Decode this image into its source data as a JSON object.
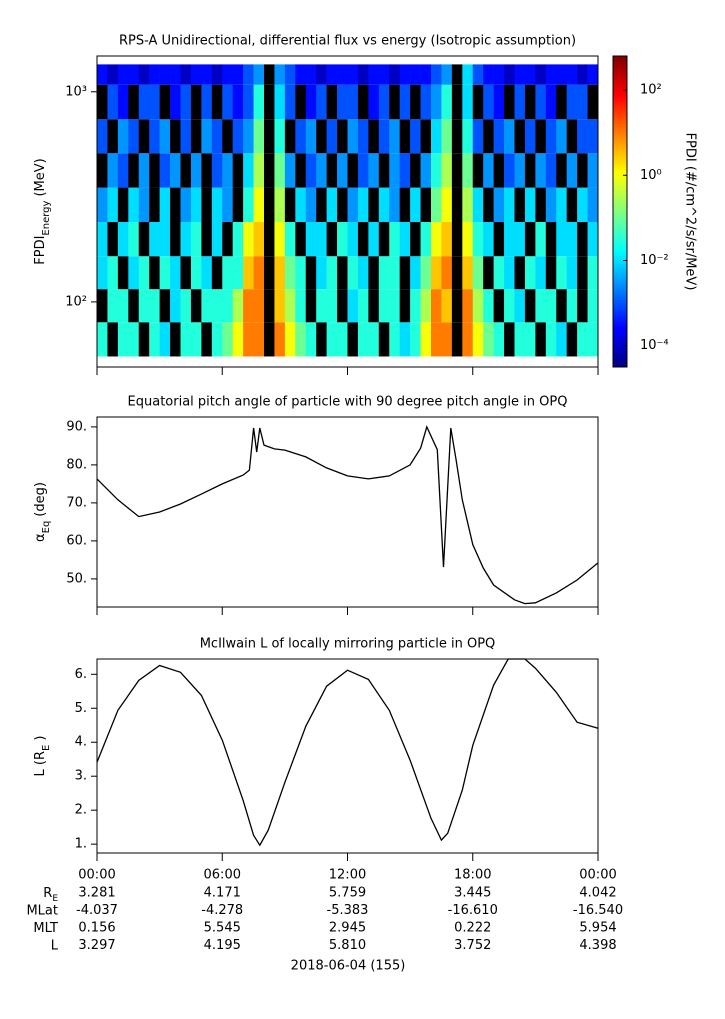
{
  "chart_data": [
    {
      "type": "heatmap",
      "title": "RPS-A Unidirectional, differential flux vs energy (Isotropic assumption)",
      "y_label": "FPDI",
      "y_label_sub": "Energy",
      "y_label_unit": "(MeV)",
      "xlim": [
        0,
        24
      ],
      "x_bins": [
        0,
        0.5,
        1,
        1.5,
        2,
        2.5,
        3,
        3.5,
        4,
        4.5,
        5,
        5.5,
        6,
        6.5,
        7,
        7.5,
        8,
        8.5,
        9,
        9.5,
        10,
        10.5,
        11,
        11.5,
        12,
        12.5,
        13,
        13.5,
        14,
        14.5,
        15,
        15.5,
        16,
        16.5,
        17,
        17.5,
        18,
        18.5,
        19,
        19.5,
        20,
        20.5,
        21,
        21.5,
        22,
        22.5,
        23,
        23.5,
        24
      ],
      "y_bins": [
        55,
        80,
        115,
        165,
        240,
        350,
        510,
        740,
        1080,
        1350
      ],
      "ylim": [
        49,
        1480
      ],
      "log_y": true,
      "yticks": [
        {
          "value": 100,
          "label": "10²"
        },
        {
          "value": 1000,
          "label": "10³"
        }
      ],
      "values": [
        [
          0.03,
          null,
          0.03,
          0.03,
          null,
          0.03,
          0.01,
          null,
          0.03,
          0.03,
          null,
          0.03,
          0.1,
          1,
          10,
          10,
          null,
          10,
          1,
          0.1,
          0.03,
          null,
          0.03,
          0.03,
          null,
          0.03,
          0.03,
          null,
          0.03,
          0.01,
          0.03,
          1,
          10,
          10,
          null,
          10,
          1,
          0.1,
          0.03,
          null,
          0.03,
          0.03,
          null,
          0.03,
          0.01,
          null,
          0.03,
          0.03
        ],
        [
          null,
          0.03,
          0.03,
          null,
          0.03,
          0.03,
          null,
          0.01,
          0.03,
          null,
          0.03,
          0.03,
          0.03,
          0.3,
          10,
          10,
          null,
          3,
          0.3,
          0.03,
          null,
          0.03,
          0.03,
          null,
          0.01,
          0.03,
          null,
          0.03,
          0.03,
          null,
          0.03,
          0.3,
          10,
          3,
          null,
          10,
          0.3,
          0.03,
          null,
          0.03,
          0.01,
          null,
          0.03,
          0.03,
          null,
          0.03,
          null,
          0.03
        ],
        [
          0.01,
          0.03,
          null,
          0.01,
          0.03,
          null,
          0.03,
          0.01,
          null,
          0.03,
          0.01,
          null,
          0.03,
          0.03,
          3,
          10,
          null,
          3,
          0.1,
          0.03,
          null,
          0.01,
          0.03,
          null,
          0.03,
          0.01,
          null,
          0.03,
          0.03,
          null,
          0.01,
          0.1,
          3,
          10,
          null,
          3,
          0.1,
          null,
          0.03,
          0.01,
          null,
          0.03,
          0.01,
          null,
          0.03,
          0.01,
          null,
          0.03
        ],
        [
          0.01,
          null,
          0.01,
          0.03,
          null,
          0.01,
          0.01,
          null,
          0.01,
          0.03,
          null,
          0.01,
          null,
          0.03,
          1,
          3,
          null,
          1,
          0.03,
          null,
          0.01,
          0.01,
          null,
          0.03,
          0.01,
          null,
          0.01,
          null,
          0.03,
          0.01,
          null,
          0.03,
          1,
          3,
          null,
          1,
          0.03,
          0.01,
          null,
          0.01,
          0.01,
          null,
          0.03,
          null,
          0.01,
          0.01,
          null,
          0.01
        ],
        [
          0.003,
          0.01,
          null,
          0.01,
          0.003,
          null,
          0.01,
          null,
          0.003,
          0.01,
          null,
          0.01,
          0.003,
          null,
          0.03,
          1,
          null,
          0.3,
          null,
          0.01,
          0.003,
          null,
          0.01,
          null,
          0.003,
          0.01,
          null,
          0.01,
          0.003,
          null,
          0.01,
          null,
          0.1,
          1,
          null,
          0.3,
          0.01,
          null,
          0.003,
          0.01,
          null,
          0.01,
          null,
          0.003,
          0.01,
          null,
          0.01,
          0.003
        ],
        [
          null,
          0.003,
          0.001,
          null,
          0.003,
          null,
          0.001,
          0.003,
          null,
          0.003,
          null,
          0.001,
          0.003,
          null,
          0.01,
          0.3,
          null,
          0.1,
          0.003,
          null,
          0.001,
          0.003,
          null,
          0.003,
          null,
          0.001,
          0.003,
          null,
          0.003,
          0.001,
          null,
          0.003,
          0.03,
          0.3,
          null,
          0.1,
          null,
          0.003,
          null,
          0.001,
          0.003,
          null,
          0.003,
          0.001,
          null,
          0.003,
          null,
          0.003
        ],
        [
          0.001,
          null,
          0.003,
          0.001,
          null,
          0.001,
          0.003,
          null,
          0.001,
          null,
          0.003,
          0.001,
          null,
          0.001,
          0.003,
          0.1,
          null,
          0.03,
          null,
          0.001,
          0.003,
          null,
          0.001,
          null,
          0.003,
          0.001,
          null,
          0.001,
          0.003,
          null,
          0.001,
          null,
          0.01,
          0.1,
          null,
          0.03,
          0.001,
          null,
          0.001,
          0.003,
          null,
          0.001,
          null,
          0.001,
          0.003,
          null,
          0.001,
          0.001
        ],
        [
          null,
          0.001,
          0.0003,
          null,
          0.001,
          0.001,
          null,
          0.0003,
          0.001,
          null,
          0.001,
          null,
          0.001,
          0.0003,
          0.001,
          0.03,
          null,
          0.01,
          0.001,
          null,
          0.0003,
          0.001,
          null,
          0.001,
          0.001,
          null,
          0.0003,
          0.001,
          null,
          0.001,
          null,
          0.001,
          0.003,
          0.03,
          null,
          0.01,
          null,
          0.001,
          0.0003,
          null,
          0.001,
          null,
          0.001,
          0.0003,
          null,
          0.001,
          0.001,
          null
        ],
        [
          0.0003,
          0.0001,
          0.0003,
          0.0003,
          0.0001,
          0.0003,
          0.0003,
          0.0003,
          0.0001,
          0.0003,
          0.0003,
          0.0001,
          0.0003,
          0.0003,
          0.001,
          0.003,
          null,
          0.003,
          0.001,
          0.0003,
          0.0003,
          0.0001,
          0.0003,
          0.0003,
          0.0003,
          0.0001,
          0.0003,
          0.0003,
          0.0001,
          0.0003,
          0.0003,
          0.0003,
          0.001,
          0.003,
          null,
          0.01,
          0.001,
          0.0003,
          0.0003,
          0.0001,
          0.0003,
          0.0003,
          0.0001,
          0.0003,
          0.0003,
          0.0003,
          0.0001,
          0.0003
        ]
      ],
      "colorbar": {
        "label": "FPDI (#/cm^2/s/sr/MeV)",
        "zlim": [
          3.16e-05,
          631
        ],
        "colormap": "jet",
        "missing_color": "#000000",
        "ticks": [
          {
            "value": 0.0001,
            "label": "10⁻⁴"
          },
          {
            "value": 0.01,
            "label": "10⁻²"
          },
          {
            "value": 1,
            "label": "10⁰"
          },
          {
            "value": 100,
            "label": "10²"
          }
        ]
      }
    },
    {
      "type": "line",
      "title": "Equatorial pitch angle of particle with 90 degree pitch angle in OPQ",
      "y_label": "α",
      "y_label_sub": "Eq",
      "y_label_unit": "(deg)",
      "xlim": [
        0,
        24
      ],
      "ylim": [
        42.6,
        92.6
      ],
      "yticks": [
        {
          "value": 50,
          "label": "50."
        },
        {
          "value": 60,
          "label": "60."
        },
        {
          "value": 70,
          "label": "70."
        },
        {
          "value": 80,
          "label": "80."
        },
        {
          "value": 90,
          "label": "90."
        }
      ],
      "color": "#000000",
      "x": [
        0,
        1,
        2,
        3,
        4,
        5,
        6,
        7,
        7.3,
        7.5,
        7.65,
        7.8,
        8,
        8.5,
        9,
        10,
        11,
        12,
        13,
        14,
        15,
        15.5,
        15.8,
        16.3,
        16.6,
        16.95,
        17.2,
        17.5,
        18,
        18.5,
        19,
        20,
        20.5,
        21,
        22,
        23,
        24
      ],
      "values": [
        76.3,
        70.8,
        66.4,
        67.6,
        69.7,
        72.3,
        75,
        77.3,
        78.6,
        89.7,
        83.4,
        89.7,
        85.2,
        84.2,
        83.9,
        82.1,
        79.2,
        77.1,
        76.3,
        77.1,
        80,
        84.4,
        90,
        84,
        53.1,
        89.7,
        81.3,
        70.8,
        59,
        52.9,
        48.4,
        44.5,
        43.5,
        43.7,
        46.3,
        49.7,
        54.2
      ]
    },
    {
      "type": "line",
      "title": "McIlwain L of locally mirroring particle in OPQ",
      "y_label": "L (R",
      "y_label_sub": "E",
      "y_label_unit": ")",
      "xlim": [
        0,
        24
      ],
      "ylim": [
        0.74,
        6.45
      ],
      "yticks": [
        {
          "value": 1,
          "label": "1."
        },
        {
          "value": 2,
          "label": "2."
        },
        {
          "value": 3,
          "label": "3."
        },
        {
          "value": 4,
          "label": "4."
        },
        {
          "value": 5,
          "label": "5."
        },
        {
          "value": 6,
          "label": "6."
        }
      ],
      "xticks": [
        {
          "value": 0,
          "label": "00:00"
        },
        {
          "value": 6,
          "label": "06:00"
        },
        {
          "value": 12,
          "label": "12:00"
        },
        {
          "value": 18,
          "label": "18:00"
        },
        {
          "value": 24,
          "label": "00:00"
        }
      ],
      "color": "#000000",
      "x": [
        0,
        1,
        2,
        3,
        4,
        5,
        6,
        7,
        7.5,
        7.8,
        8.2,
        9,
        10,
        11,
        12,
        13,
        14,
        15,
        16,
        16.5,
        16.8,
        17.5,
        18,
        19,
        19.7,
        20.5,
        21,
        22,
        23,
        24
      ],
      "values": [
        3.41,
        4.94,
        5.82,
        6.26,
        6.06,
        5.38,
        4.06,
        2.29,
        1.26,
        0.97,
        1.41,
        2.82,
        4.47,
        5.65,
        6.12,
        5.85,
        4.94,
        3.47,
        1.76,
        1.12,
        1.32,
        2.59,
        3.91,
        5.68,
        6.45,
        6.45,
        6.18,
        5.47,
        4.59,
        4.41
      ]
    }
  ],
  "footer": {
    "rows": [
      {
        "label": "R",
        "label_sub": "E",
        "values": [
          "3.281",
          "4.171",
          "5.759",
          "3.445",
          "4.042"
        ]
      },
      {
        "label": "MLat",
        "values": [
          "-4.037",
          "-4.278",
          "-5.383",
          "-16.610",
          "-16.540"
        ]
      },
      {
        "label": "MLT",
        "values": [
          "0.156",
          "5.545",
          "2.945",
          "0.222",
          "5.954"
        ]
      },
      {
        "label": "L",
        "values": [
          "3.297",
          "4.195",
          "5.810",
          "3.752",
          "4.398"
        ]
      }
    ],
    "date": "2018-06-04 (155)"
  }
}
